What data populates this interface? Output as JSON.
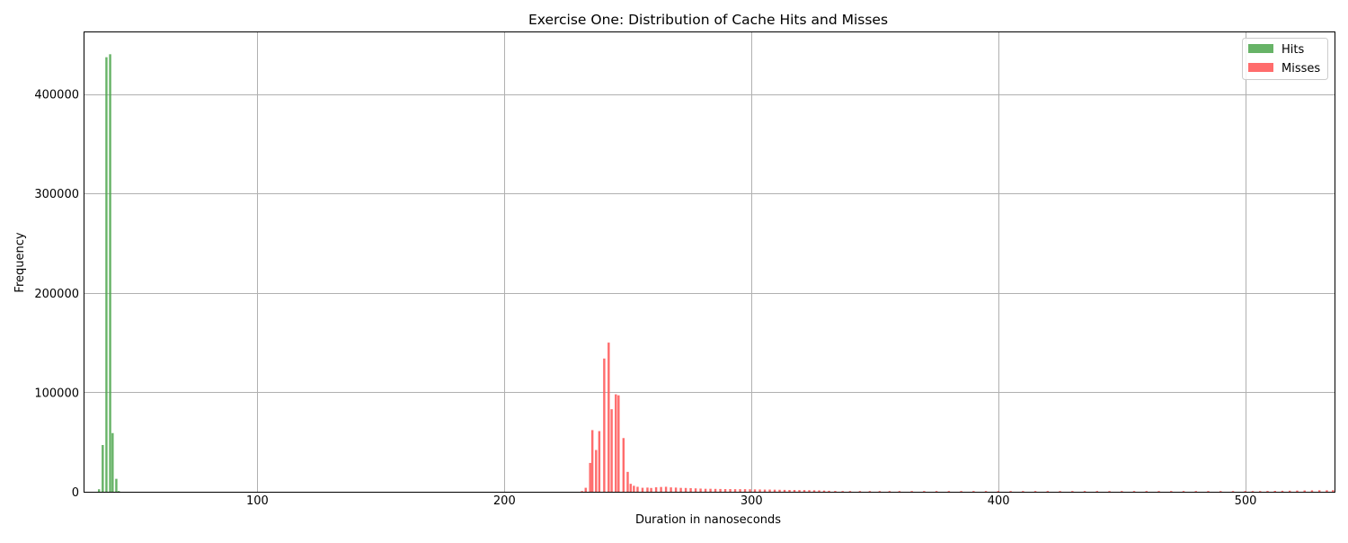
{
  "chart_data": {
    "type": "bar",
    "title": "Exercise One: Distribution of Cache Hits and Misses",
    "xlabel": "Duration in nanoseconds",
    "ylabel": "Frequency",
    "xlim": [
      30,
      536
    ],
    "ylim": [
      0,
      462000.0
    ],
    "xticks": [
      100,
      200,
      300,
      400,
      500
    ],
    "yticks": [
      0,
      100000,
      200000,
      300000,
      400000
    ],
    "grid": true,
    "legend": {
      "placement": "top-right"
    },
    "bin_width": 1.1,
    "series": [
      {
        "name": "Hits",
        "color": "#4ca64c",
        "points": [
          [
            36,
            2500
          ],
          [
            37.5,
            47000
          ],
          [
            39,
            437000
          ],
          [
            40.5,
            440000
          ],
          [
            41.5,
            59000
          ],
          [
            43,
            13000
          ],
          [
            44,
            400
          ]
        ]
      },
      {
        "name": "Misses",
        "color": "#ff5c5c",
        "points": [
          [
            231.5,
            600
          ],
          [
            233,
            4000
          ],
          [
            234.8,
            29000
          ],
          [
            235.7,
            62000
          ],
          [
            237.2,
            42000
          ],
          [
            238.5,
            61000
          ],
          [
            240.5,
            134000
          ],
          [
            242.3,
            150000
          ],
          [
            243.5,
            83000
          ],
          [
            245.2,
            98000
          ],
          [
            246.3,
            97000
          ],
          [
            248.3,
            54000
          ],
          [
            250,
            20000
          ],
          [
            251.2,
            8000
          ],
          [
            252.5,
            6000
          ],
          [
            254,
            5000
          ],
          [
            256,
            4000
          ],
          [
            258,
            4200
          ],
          [
            259.5,
            3800
          ],
          [
            261.5,
            4500
          ],
          [
            263.5,
            4800
          ],
          [
            265.5,
            5000
          ],
          [
            267.5,
            4400
          ],
          [
            269.5,
            4200
          ],
          [
            271.5,
            3900
          ],
          [
            273.5,
            3800
          ],
          [
            275.5,
            3600
          ],
          [
            277.5,
            3400
          ],
          [
            279.5,
            3200
          ],
          [
            281.5,
            3000
          ],
          [
            283.5,
            3000
          ],
          [
            285.5,
            2900
          ],
          [
            287.5,
            2800
          ],
          [
            289.5,
            2700
          ],
          [
            291.5,
            2700
          ],
          [
            293.5,
            2600
          ],
          [
            295.5,
            2600
          ],
          [
            297.5,
            2600
          ],
          [
            299.5,
            2500
          ],
          [
            301.5,
            2400
          ],
          [
            303.5,
            2300
          ],
          [
            305.5,
            2200
          ],
          [
            307.5,
            2200
          ],
          [
            309.5,
            2100
          ],
          [
            311.5,
            2000
          ],
          [
            313.5,
            1900
          ],
          [
            315.5,
            1800
          ],
          [
            317.5,
            1800
          ],
          [
            319.5,
            1700
          ],
          [
            321.5,
            1700
          ],
          [
            323.5,
            1600
          ],
          [
            325.5,
            1500
          ],
          [
            327.5,
            1400
          ],
          [
            329.5,
            1200
          ],
          [
            331.5,
            1000
          ],
          [
            334,
            800
          ],
          [
            337,
            700
          ],
          [
            340,
            600
          ],
          [
            344,
            500
          ],
          [
            348,
            500
          ],
          [
            352,
            400
          ],
          [
            356,
            400
          ],
          [
            360,
            350
          ],
          [
            365,
            300
          ],
          [
            370,
            300
          ],
          [
            375,
            250
          ],
          [
            380,
            250
          ],
          [
            385,
            250
          ],
          [
            390,
            200
          ],
          [
            395,
            200
          ],
          [
            400,
            200
          ],
          [
            405,
            150
          ],
          [
            410,
            150
          ],
          [
            415,
            150
          ],
          [
            420,
            150
          ],
          [
            425,
            150
          ],
          [
            430,
            150
          ],
          [
            435,
            150
          ],
          [
            440,
            150
          ],
          [
            445,
            150
          ],
          [
            450,
            150
          ],
          [
            455,
            150
          ],
          [
            460,
            200
          ],
          [
            465,
            200
          ],
          [
            470,
            200
          ],
          [
            475,
            250
          ],
          [
            480,
            300
          ],
          [
            485,
            300
          ],
          [
            490,
            350
          ],
          [
            495,
            400
          ],
          [
            500,
            400
          ],
          [
            503,
            600
          ],
          [
            506,
            700
          ],
          [
            509,
            800
          ],
          [
            512,
            900
          ],
          [
            515,
            1000
          ],
          [
            518,
            1100
          ],
          [
            521,
            1200
          ],
          [
            524,
            1300
          ],
          [
            527,
            1400
          ],
          [
            530,
            1500
          ],
          [
            533,
            1500
          ],
          [
            535.5,
            1600
          ]
        ]
      }
    ]
  }
}
